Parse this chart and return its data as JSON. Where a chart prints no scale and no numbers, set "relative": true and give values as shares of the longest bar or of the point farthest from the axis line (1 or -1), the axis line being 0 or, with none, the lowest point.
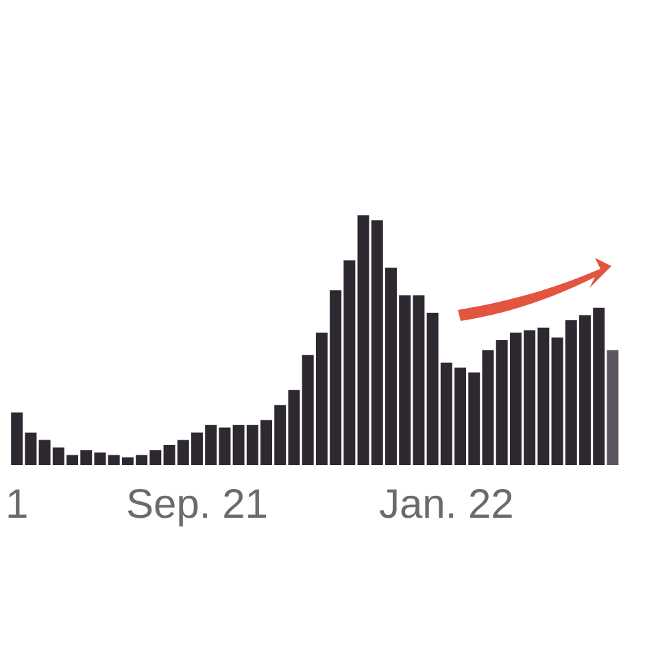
{
  "chart_data": {
    "type": "bar",
    "relative": true,
    "grid": false,
    "legend": false,
    "categories": [
      "1",
      null,
      null,
      null,
      null,
      null,
      null,
      null,
      null,
      null,
      null,
      null,
      null,
      "Sep. 21",
      null,
      null,
      null,
      null,
      null,
      null,
      null,
      null,
      null,
      null,
      null,
      null,
      null,
      null,
      null,
      null,
      null,
      "Jan. 22",
      null,
      null,
      null,
      null,
      null,
      null,
      null,
      null,
      null,
      null,
      null,
      null
    ],
    "values": [
      0.21,
      0.13,
      0.1,
      0.07,
      0.04,
      0.06,
      0.05,
      0.04,
      0.03,
      0.04,
      0.06,
      0.08,
      0.1,
      0.13,
      0.16,
      0.15,
      0.16,
      0.16,
      0.18,
      0.24,
      0.3,
      0.44,
      0.53,
      0.7,
      0.82,
      1,
      0.98,
      0.79,
      0.68,
      0.68,
      0.61,
      0.41,
      0.39,
      0.37,
      0.46,
      0.5,
      0.53,
      0.54,
      0.55,
      0.51,
      0.58,
      0.6,
      0.63,
      0.46
    ],
    "colors": [
      "#2e2830",
      "#2e2830",
      "#2e2830",
      "#2e2830",
      "#2e2830",
      "#2e2830",
      "#2e2830",
      "#2e2830",
      "#2e2830",
      "#2e2830",
      "#2e2830",
      "#2e2830",
      "#2e2830",
      "#2e2830",
      "#2e2830",
      "#2e2830",
      "#2e2830",
      "#2e2830",
      "#2e2830",
      "#2e2830",
      "#2e2830",
      "#2e2830",
      "#2e2830",
      "#2e2830",
      "#2e2830",
      "#2e2830",
      "#2e2830",
      "#2e2830",
      "#2e2830",
      "#2e2830",
      "#2e2830",
      "#2e2830",
      "#2e2830",
      "#2e2830",
      "#2e2830",
      "#2e2830",
      "#2e2830",
      "#2e2830",
      "#2e2830",
      "#2e2830",
      "#2e2830",
      "#2e2830",
      "#2e2830",
      "#5c5660"
    ]
  }
}
